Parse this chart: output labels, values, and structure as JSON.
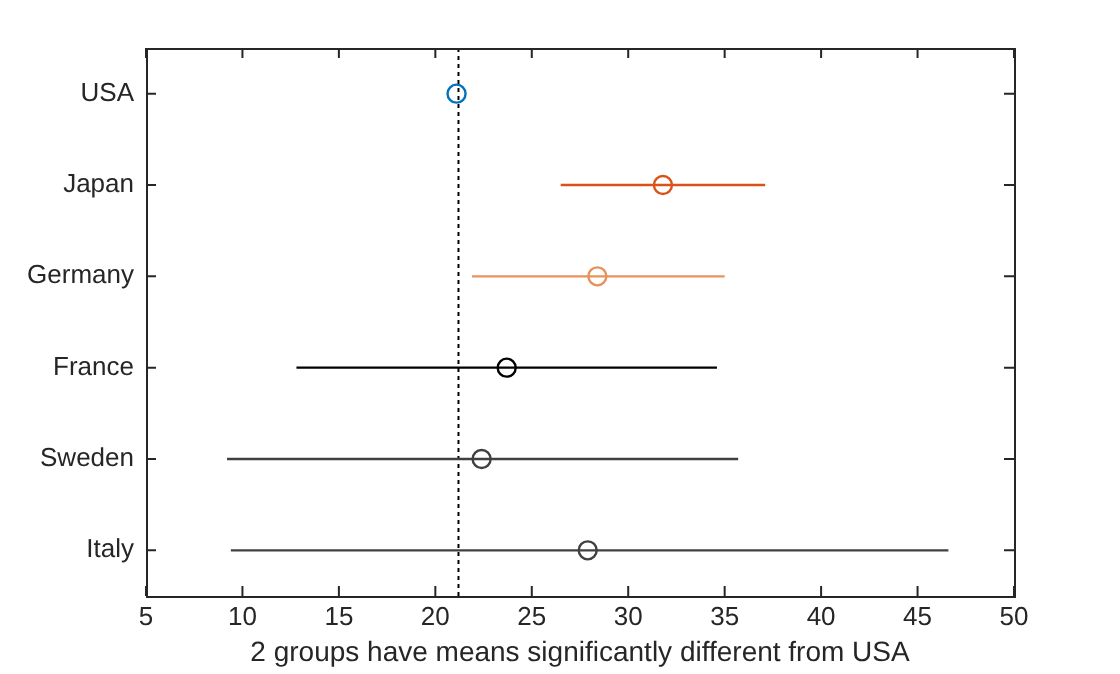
{
  "chart_data": {
    "type": "scatter",
    "orientation": "horizontal",
    "categories": [
      "USA",
      "Japan",
      "Germany",
      "France",
      "Sweden",
      "Italy"
    ],
    "values": [
      21.1,
      31.8,
      28.4,
      23.7,
      22.4,
      27.9
    ],
    "errors": [
      null,
      [
        26.5,
        37.1
      ],
      [
        21.9,
        35.0
      ],
      [
        12.8,
        34.6
      ],
      [
        9.2,
        35.7
      ],
      [
        9.4,
        46.6
      ]
    ],
    "colors": [
      "#0072bd",
      "#d95319",
      "#e8915a",
      "#000000",
      "#404040",
      "#404040"
    ],
    "xlim": [
      5,
      50
    ],
    "xticks": [
      5,
      10,
      15,
      20,
      25,
      30,
      35,
      40,
      45,
      50
    ],
    "xlabel": "2 groups have means significantly different from USA",
    "ref_lines": [
      {
        "axis": "x",
        "value": 21.2,
        "line_style": "dotted",
        "color": "#000000"
      }
    ],
    "marker": "circle",
    "grid": false,
    "legend": false
  }
}
